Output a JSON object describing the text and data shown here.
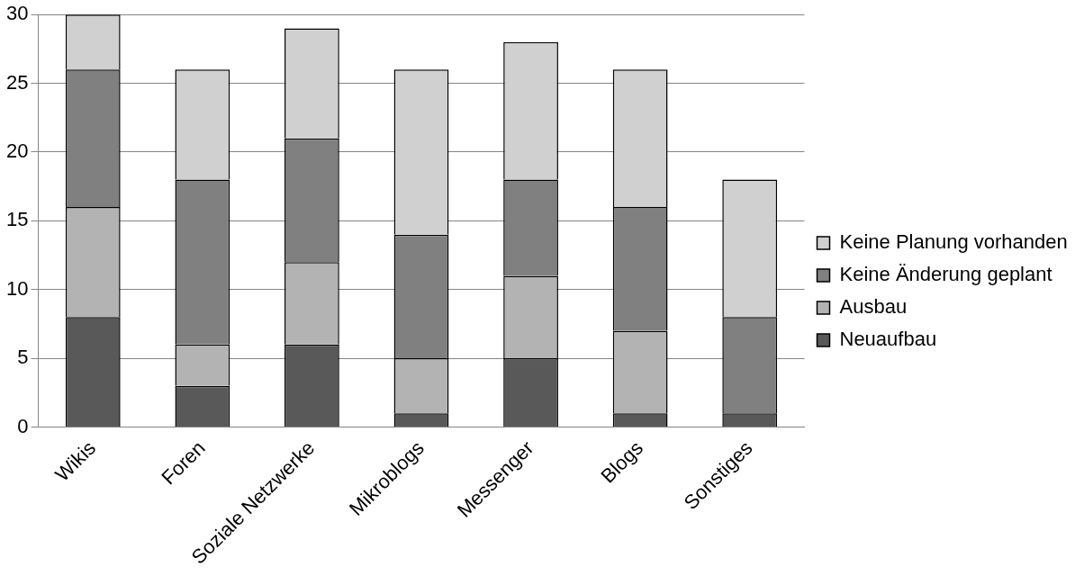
{
  "chart_data": {
    "type": "bar",
    "stacked": true,
    "categories": [
      "Wikis",
      "Foren",
      "Soziale Netzwerke",
      "Mikroblogs",
      "Messenger",
      "Blogs",
      "Sonstiges"
    ],
    "series": [
      {
        "name": "Neuaufbau",
        "color": "#595959",
        "values": [
          8,
          3,
          6,
          1,
          5,
          1,
          1
        ]
      },
      {
        "name": "Ausbau",
        "color": "#b3b3b3",
        "values": [
          8,
          3,
          6,
          4,
          6,
          6,
          0
        ]
      },
      {
        "name": "Keine Änderung geplant",
        "color": "#808080",
        "values": [
          10,
          12,
          9,
          9,
          7,
          9,
          7
        ]
      },
      {
        "name": "Keine Planung vorhanden",
        "color": "#d0d0d0",
        "values": [
          4,
          8,
          8,
          12,
          10,
          10,
          10
        ]
      }
    ],
    "ylim": [
      0,
      30
    ],
    "yticks": [
      0,
      5,
      10,
      15,
      20,
      25,
      30
    ],
    "grid": "y",
    "legend": "right"
  }
}
